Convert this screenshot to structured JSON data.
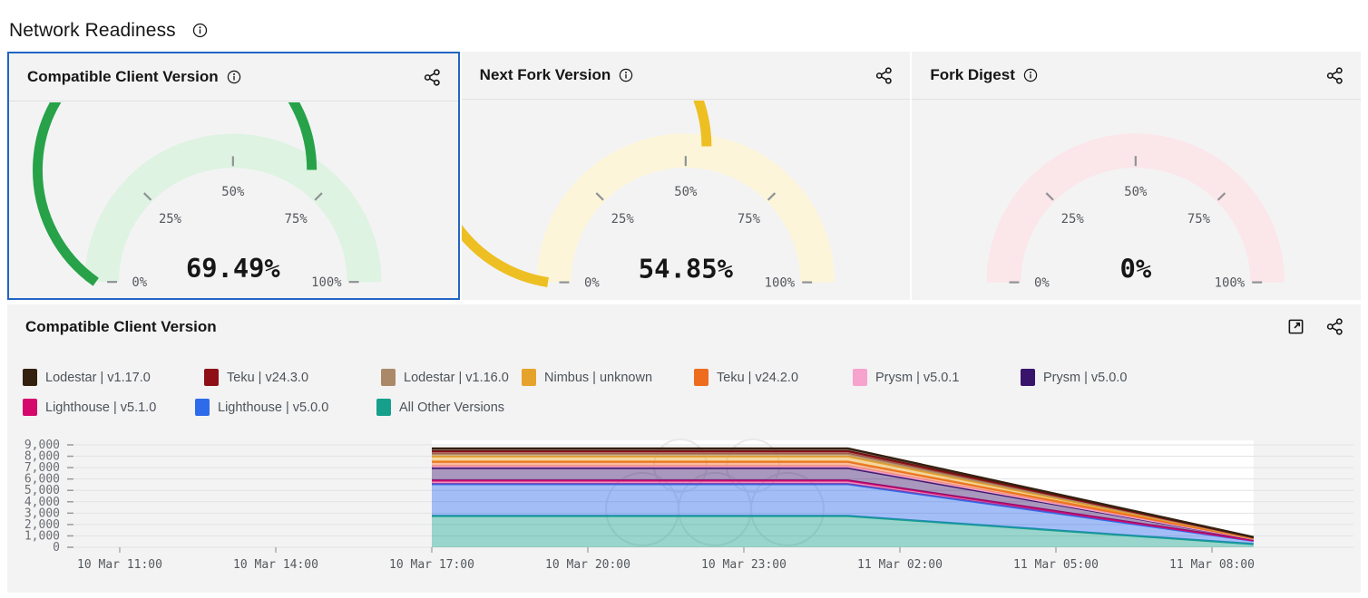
{
  "page": {
    "title": "Network Readiness"
  },
  "colors": {
    "selected_border": "#2265c4",
    "panel_bg": "#f3f3f4",
    "grid_line": "#e4e4e5",
    "tick": "#9a9a9a",
    "axis_label": "#55585c"
  },
  "gauge_ticks": [
    "0%",
    "25%",
    "50%",
    "75%",
    "100%"
  ],
  "gauge_panels": [
    {
      "title": "Compatible Client Version",
      "value": 69.49,
      "value_label": "69.49%",
      "arc_color": "#27a249",
      "track_color": "#def3e1",
      "selected": true
    },
    {
      "title": "Next Fork Version",
      "value": 54.85,
      "value_label": "54.85%",
      "arc_color": "#edbf22",
      "track_color": "#fcf5da",
      "selected": false
    },
    {
      "title": "Fork Digest",
      "value": 0,
      "value_label": "0%",
      "arc_color": "#e87b96",
      "track_color": "#fbe6ea",
      "selected": false
    }
  ],
  "chart_panel": {
    "title": "Compatible Client Version",
    "chart_data": {
      "type": "area",
      "stacked": true,
      "ylim": [
        0,
        9000
      ],
      "y_tick_labels": [
        "0",
        "1,000",
        "2,000",
        "3,000",
        "4,000",
        "5,000",
        "6,000",
        "7,000",
        "8,000",
        "9,000"
      ],
      "x_ticks": [
        {
          "t": 11,
          "label": "10 Mar 11:00"
        },
        {
          "t": 14,
          "label": "10 Mar 14:00"
        },
        {
          "t": 17,
          "label": "10 Mar 17:00"
        },
        {
          "t": 20,
          "label": "10 Mar 20:00"
        },
        {
          "t": 23,
          "label": "10 Mar 23:00"
        },
        {
          "t": 26,
          "label": "11 Mar 02:00"
        },
        {
          "t": 29,
          "label": "11 Mar 05:00"
        },
        {
          "t": 32,
          "label": "11 Mar 08:00"
        }
      ],
      "t_points": [
        17,
        25,
        32.8
      ],
      "series": [
        {
          "name": "Lodestar | v1.17.0",
          "color": "#33200f",
          "values": [
            240,
            240,
            25
          ]
        },
        {
          "name": "Teku | v24.3.0",
          "color": "#8e1016",
          "values": [
            230,
            230,
            24
          ]
        },
        {
          "name": "Lodestar | v1.16.0",
          "color": "#ab8968",
          "values": [
            230,
            230,
            24
          ]
        },
        {
          "name": "Nimbus | unknown",
          "color": "#e6a32c",
          "values": [
            470,
            470,
            48
          ]
        },
        {
          "name": "Teku | v24.2.0",
          "color": "#ed6c1e",
          "values": [
            390,
            390,
            40
          ]
        },
        {
          "name": "Prysm | v5.0.1",
          "color": "#f6a3ce",
          "values": [
            160,
            160,
            17
          ]
        },
        {
          "name": "Prysm | v5.0.0",
          "color": "#38146b",
          "values": [
            1100,
            1100,
            113
          ]
        },
        {
          "name": "Lighthouse | v5.1.0",
          "color": "#d5096d",
          "values": [
            320,
            320,
            33
          ]
        },
        {
          "name": "Lighthouse | v5.0.0",
          "color": "#2e6bea",
          "values": [
            2800,
            2800,
            288
          ]
        },
        {
          "name": "All Other Versions",
          "color": "#16a08c",
          "values": [
            2750,
            2750,
            283
          ]
        }
      ]
    }
  }
}
